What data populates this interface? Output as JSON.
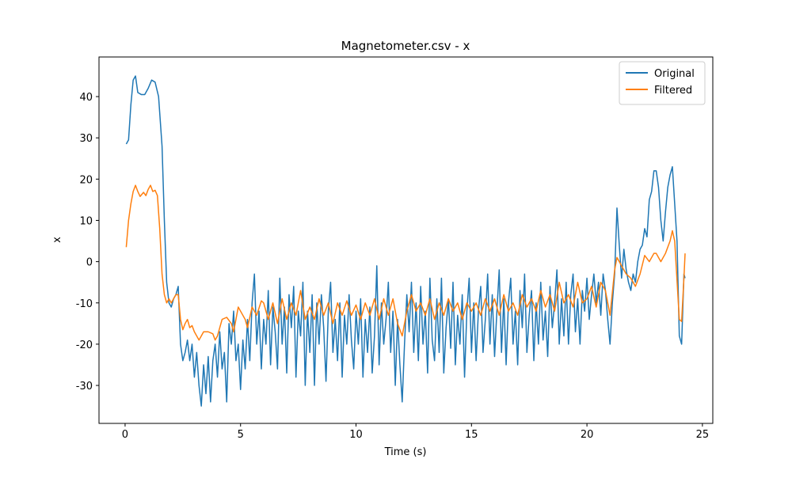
{
  "chart_data": {
    "type": "line",
    "title": "Magnetometer.csv - x",
    "x_label": "Time (s)",
    "y_label": "x",
    "xlim": [
      -1.13,
      25.45
    ],
    "ylim": [
      -39.2,
      49.6
    ],
    "xticks": [
      0,
      5,
      10,
      15,
      20,
      25
    ],
    "yticks": [
      -30,
      -20,
      -10,
      0,
      10,
      20,
      30,
      40
    ],
    "legend": "upper right",
    "series": [
      {
        "name": "Original",
        "color": "#1f77b4",
        "x": [
          0.05,
          0.15,
          0.25,
          0.35,
          0.45,
          0.55,
          0.7,
          0.85,
          1.0,
          1.15,
          1.3,
          1.45,
          1.6,
          1.7,
          1.8,
          1.9,
          2.0,
          2.1,
          2.2,
          2.3,
          2.4,
          2.5,
          2.6,
          2.7,
          2.8,
          2.9,
          3.0,
          3.1,
          3.2,
          3.3,
          3.4,
          3.5,
          3.6,
          3.7,
          3.8,
          3.9,
          4.0,
          4.1,
          4.2,
          4.3,
          4.4,
          4.5,
          4.6,
          4.7,
          4.8,
          4.9,
          5.0,
          5.1,
          5.2,
          5.3,
          5.4,
          5.5,
          5.6,
          5.7,
          5.8,
          5.9,
          6.0,
          6.1,
          6.2,
          6.3,
          6.4,
          6.5,
          6.6,
          6.7,
          6.8,
          6.9,
          7.0,
          7.1,
          7.2,
          7.3,
          7.4,
          7.5,
          7.6,
          7.7,
          7.8,
          7.9,
          8.0,
          8.1,
          8.2,
          8.3,
          8.4,
          8.5,
          8.6,
          8.7,
          8.8,
          8.9,
          9.0,
          9.1,
          9.2,
          9.3,
          9.4,
          9.5,
          9.6,
          9.7,
          9.8,
          9.9,
          10.0,
          10.1,
          10.2,
          10.3,
          10.4,
          10.5,
          10.6,
          10.7,
          10.8,
          10.9,
          11.0,
          11.1,
          11.2,
          11.3,
          11.4,
          11.5,
          11.6,
          11.7,
          11.8,
          11.9,
          12.0,
          12.1,
          12.2,
          12.3,
          12.4,
          12.5,
          12.6,
          12.7,
          12.8,
          12.9,
          13.0,
          13.1,
          13.2,
          13.3,
          13.4,
          13.5,
          13.6,
          13.7,
          13.8,
          13.9,
          14.0,
          14.1,
          14.2,
          14.3,
          14.4,
          14.5,
          14.6,
          14.7,
          14.8,
          14.9,
          15.0,
          15.1,
          15.2,
          15.3,
          15.4,
          15.5,
          15.6,
          15.7,
          15.8,
          15.9,
          16.0,
          16.1,
          16.2,
          16.3,
          16.4,
          16.5,
          16.6,
          16.7,
          16.8,
          16.9,
          17.0,
          17.1,
          17.2,
          17.3,
          17.4,
          17.5,
          17.6,
          17.7,
          17.8,
          17.9,
          18.0,
          18.1,
          18.2,
          18.3,
          18.4,
          18.5,
          18.6,
          18.7,
          18.8,
          18.9,
          19.0,
          19.1,
          19.2,
          19.3,
          19.4,
          19.5,
          19.6,
          19.7,
          19.8,
          19.9,
          20.0,
          20.1,
          20.2,
          20.3,
          20.4,
          20.5,
          20.6,
          20.7,
          20.8,
          20.9,
          21.0,
          21.1,
          21.2,
          21.3,
          21.4,
          21.5,
          21.6,
          21.7,
          21.8,
          21.9,
          22.0,
          22.1,
          22.2,
          22.3,
          22.4,
          22.5,
          22.6,
          22.7,
          22.8,
          22.9,
          23.0,
          23.1,
          23.2,
          23.3,
          23.4,
          23.5,
          23.6,
          23.7,
          23.8,
          23.9,
          24.0,
          24.1,
          24.2,
          24.25
        ],
        "values": [
          28.5,
          29.5,
          38,
          44,
          45,
          41,
          40.5,
          40.5,
          42,
          44,
          43.5,
          40,
          28,
          10,
          -5,
          -10,
          -11,
          -9,
          -8,
          -6,
          -20,
          -24,
          -22,
          -19,
          -24,
          -20,
          -28,
          -22,
          -30,
          -35,
          -25,
          -32,
          -23,
          -34,
          -24,
          -20,
          -28,
          -17,
          -26,
          -22,
          -34,
          -15,
          -20,
          -12,
          -24,
          -20,
          -31,
          -19,
          -26,
          -14,
          -24,
          -10,
          -3,
          -20,
          -12,
          -26,
          -14,
          -20,
          -7,
          -25,
          -11,
          -17,
          -26,
          -4,
          -20,
          -11,
          -27,
          -8,
          -16,
          -6,
          -28,
          -12,
          -18,
          -5,
          -30,
          -12,
          -22,
          -8,
          -30,
          -10,
          -20,
          -8,
          -16,
          -29,
          -12,
          -5,
          -22,
          -14,
          -24,
          -10,
          -28,
          -13,
          -20,
          -8,
          -19,
          -26,
          -12,
          -20,
          -9,
          -28,
          -14,
          -22,
          -11,
          -27,
          -18,
          -1,
          -25,
          -10,
          -20,
          -14,
          -5,
          -22,
          -12,
          -30,
          -14,
          -25,
          -34,
          -20,
          -8,
          -17,
          -5,
          -22,
          -10,
          -24,
          -6,
          -20,
          -12,
          -27,
          -4,
          -19,
          -24,
          -9,
          -22,
          -4,
          -27,
          -16,
          -9,
          -21,
          -5,
          -25,
          -13,
          -20,
          -8,
          -28,
          -12,
          -4,
          -22,
          -10,
          -24,
          -12,
          -6,
          -22,
          -14,
          -3,
          -20,
          -8,
          -23,
          -12,
          -2,
          -22,
          -9,
          -25,
          -10,
          -4,
          -20,
          -12,
          -25,
          -7,
          -16,
          -3,
          -22,
          -13,
          -7,
          -24,
          -10,
          -20,
          -5,
          -19,
          -12,
          -23,
          -6,
          -16,
          -10,
          -2,
          -20,
          -9,
          -18,
          -5,
          -20,
          -8,
          -3,
          -17,
          -9,
          -20,
          -7,
          -12,
          -4,
          -14,
          -8,
          -3,
          -10,
          -5,
          -13,
          -3,
          -7,
          -14,
          -20,
          -10,
          -3,
          13,
          4,
          -4,
          3,
          -2,
          -5,
          -7,
          -3,
          -5,
          0,
          3,
          4,
          8,
          6,
          15,
          17,
          22,
          22,
          18,
          10,
          5,
          12,
          18,
          21,
          23,
          14,
          5,
          -18,
          -20,
          -3,
          -4
        ]
      },
      {
        "name": "Filtered",
        "color": "#ff7f0e",
        "x": [
          0.05,
          0.15,
          0.25,
          0.35,
          0.45,
          0.55,
          0.65,
          0.8,
          0.9,
          1.0,
          1.1,
          1.2,
          1.3,
          1.4,
          1.5,
          1.6,
          1.7,
          1.8,
          1.9,
          2.0,
          2.2,
          2.3,
          2.4,
          2.5,
          2.6,
          2.7,
          2.8,
          2.9,
          3.0,
          3.2,
          3.3,
          3.4,
          3.6,
          3.8,
          3.9,
          4.0,
          4.2,
          4.4,
          4.6,
          4.7,
          4.9,
          5.0,
          5.2,
          5.3,
          5.5,
          5.7,
          5.9,
          6.0,
          6.2,
          6.4,
          6.6,
          6.8,
          7.0,
          7.2,
          7.4,
          7.6,
          7.8,
          8.0,
          8.2,
          8.4,
          8.6,
          8.8,
          9.0,
          9.2,
          9.4,
          9.6,
          9.8,
          10.0,
          10.2,
          10.4,
          10.6,
          10.8,
          11.0,
          11.2,
          11.4,
          11.6,
          11.8,
          12.0,
          12.2,
          12.4,
          12.6,
          12.8,
          13.0,
          13.2,
          13.4,
          13.6,
          13.8,
          14.0,
          14.2,
          14.4,
          14.6,
          14.8,
          15.0,
          15.2,
          15.4,
          15.6,
          15.8,
          16.0,
          16.2,
          16.4,
          16.6,
          16.8,
          17.0,
          17.2,
          17.4,
          17.6,
          17.8,
          18.0,
          18.2,
          18.4,
          18.6,
          18.8,
          19.0,
          19.2,
          19.4,
          19.6,
          19.8,
          20.0,
          20.2,
          20.4,
          20.6,
          20.8,
          21.0,
          21.2,
          21.3,
          21.5,
          21.7,
          21.9,
          22.1,
          22.3,
          22.5,
          22.7,
          22.9,
          23.0,
          23.2,
          23.4,
          23.6,
          23.7,
          23.8,
          24.0,
          24.1,
          24.2,
          24.25
        ],
        "values": [
          3.5,
          10,
          14,
          17,
          18.5,
          17,
          15.8,
          16.8,
          16,
          17.5,
          18.5,
          17,
          17.3,
          16,
          8,
          -3,
          -8,
          -10,
          -9,
          -10,
          -8,
          -8,
          -14,
          -16.5,
          -15,
          -14,
          -16,
          -15.5,
          -17,
          -19,
          -18,
          -17,
          -17,
          -17.5,
          -19,
          -18,
          -14,
          -13.5,
          -15,
          -17,
          -11,
          -12,
          -14,
          -16,
          -11,
          -13,
          -9.5,
          -10,
          -14,
          -10,
          -15,
          -9,
          -14,
          -10,
          -13,
          -7,
          -14,
          -11,
          -14,
          -9,
          -13,
          -10,
          -15,
          -10,
          -13,
          -9.5,
          -13,
          -10.5,
          -14,
          -10,
          -13,
          -9,
          -14,
          -9,
          -13,
          -9,
          -15,
          -18,
          -12,
          -8,
          -12,
          -10,
          -13,
          -9,
          -14,
          -10,
          -13,
          -9,
          -12,
          -10,
          -14,
          -10,
          -12,
          -10,
          -13,
          -9,
          -12,
          -9,
          -13,
          -8,
          -12,
          -10,
          -13,
          -8,
          -11,
          -9,
          -12,
          -7,
          -11,
          -8,
          -12,
          -5,
          -10,
          -8,
          -11,
          -5,
          -10,
          -9,
          -6,
          -11,
          -5,
          -7,
          -13,
          -2,
          1,
          -1,
          -3,
          -4,
          -6,
          -3,
          1.5,
          0,
          2,
          2,
          0,
          2,
          5,
          7.5,
          5,
          -14,
          -14.5,
          -4,
          2
        ]
      }
    ]
  }
}
